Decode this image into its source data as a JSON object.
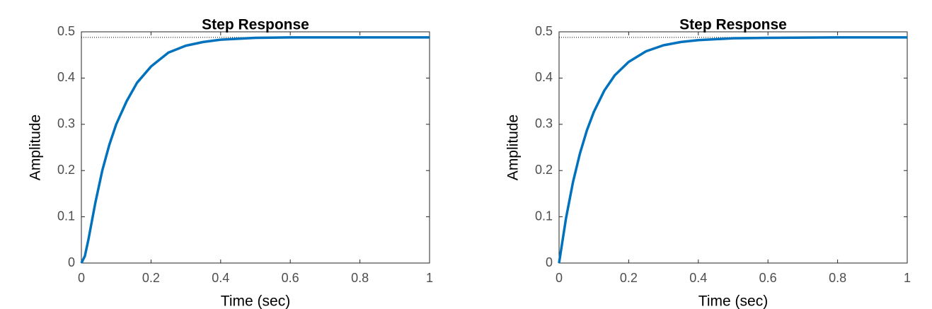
{
  "chart_data": [
    {
      "type": "line",
      "title": "Step Response",
      "x_label": "Time (sec)",
      "y_label": "Amplitude",
      "x": [
        0,
        0.01,
        0.02,
        0.04,
        0.06,
        0.08,
        0.1,
        0.13,
        0.16,
        0.2,
        0.25,
        0.3,
        0.35,
        0.4,
        0.5,
        0.6,
        0.8,
        1
      ],
      "series": [
        {
          "color": "#0072bd",
          "values": [
            0,
            0.015,
            0.05,
            0.13,
            0.2,
            0.255,
            0.3,
            0.35,
            0.39,
            0.425,
            0.455,
            0.47,
            0.478,
            0.483,
            0.487,
            0.488,
            0.488,
            0.488
          ]
        }
      ],
      "steady_state": 0.488,
      "xlim": [
        0,
        1
      ],
      "ylim": [
        0,
        0.5
      ],
      "xticks": [
        0,
        0.2,
        0.4,
        0.6,
        0.8,
        1
      ],
      "yticks": [
        0,
        0.1,
        0.2,
        0.3,
        0.4,
        0.5
      ],
      "grid": false
    },
    {
      "type": "line",
      "title": "Step Response",
      "x_label": "Time (sec)",
      "y_label": "Amplitude",
      "x": [
        0,
        0.02,
        0.04,
        0.06,
        0.08,
        0.1,
        0.13,
        0.16,
        0.2,
        0.25,
        0.3,
        0.35,
        0.4,
        0.5,
        0.6,
        0.8,
        1
      ],
      "series": [
        {
          "color": "#0072bd",
          "values": [
            0,
            0.097,
            0.175,
            0.237,
            0.287,
            0.327,
            0.373,
            0.406,
            0.435,
            0.458,
            0.471,
            0.478,
            0.482,
            0.486,
            0.487,
            0.488,
            0.488
          ]
        }
      ],
      "steady_state": 0.488,
      "xlim": [
        0,
        1
      ],
      "ylim": [
        0,
        0.5
      ],
      "xticks": [
        0,
        0.2,
        0.4,
        0.6,
        0.8,
        1
      ],
      "yticks": [
        0,
        0.1,
        0.2,
        0.3,
        0.4,
        0.5
      ],
      "grid": false
    }
  ]
}
